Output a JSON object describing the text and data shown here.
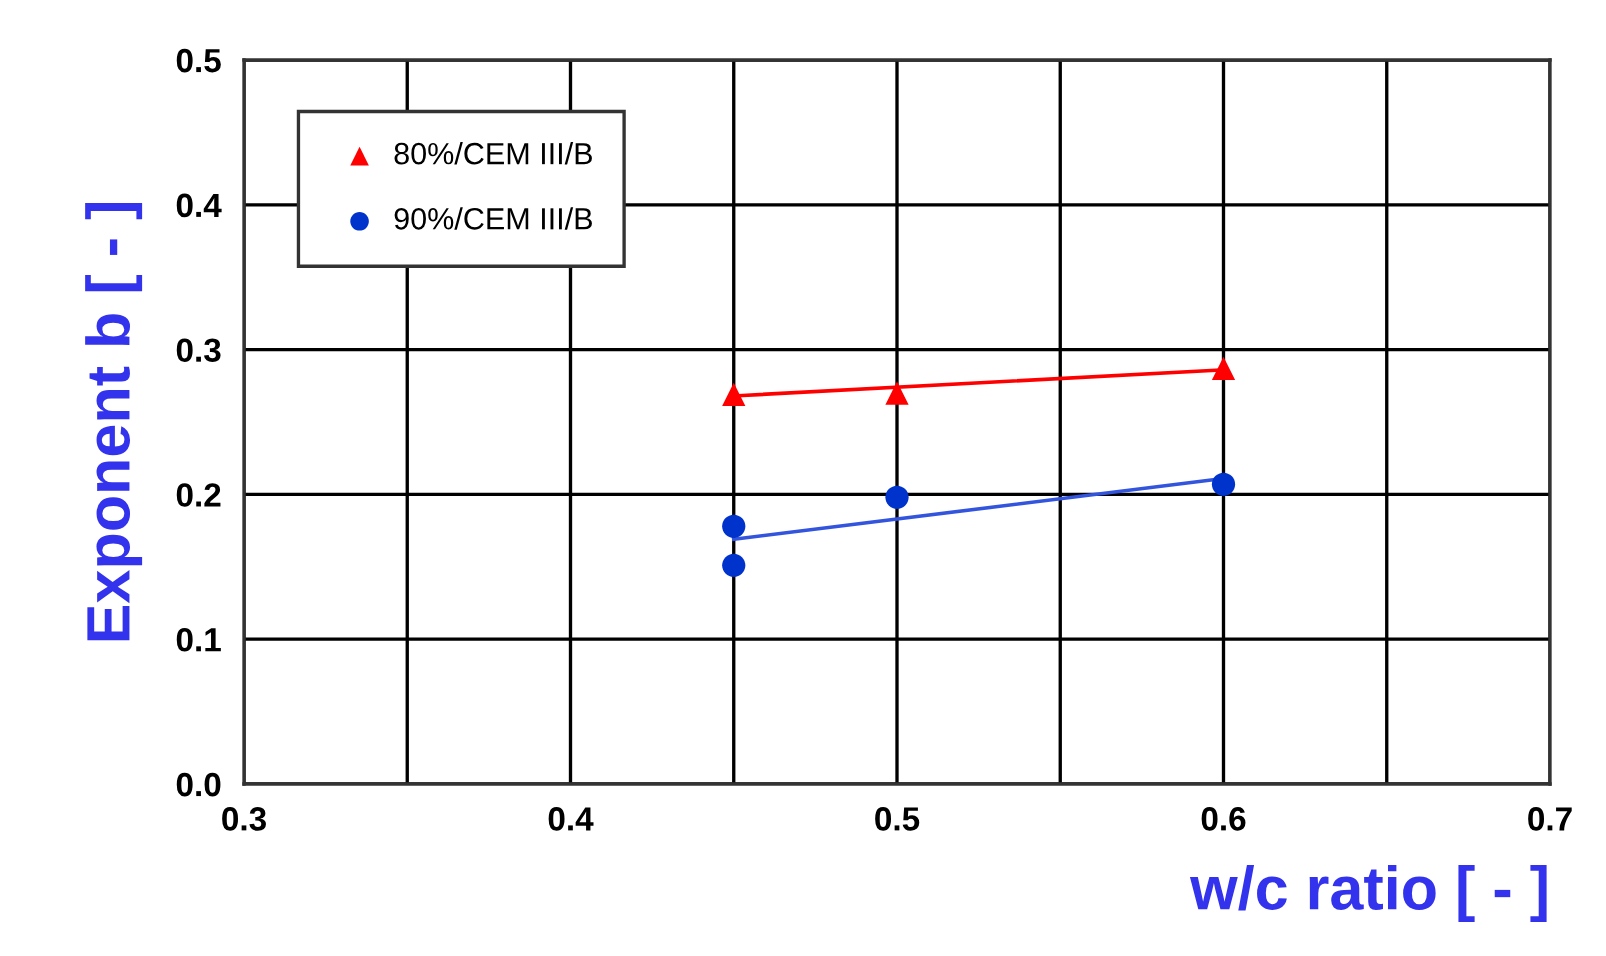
{
  "chart_data": {
    "type": "scatter",
    "xlabel": "w/c ratio [ - ]",
    "ylabel": "Exponent b [ - ]",
    "xlim": [
      0.3,
      0.7
    ],
    "ylim": [
      0.0,
      0.5
    ],
    "xticks": [
      {
        "value": 0.3,
        "label": "0.3"
      },
      {
        "value": 0.35,
        "label": null
      },
      {
        "value": 0.4,
        "label": "0.4"
      },
      {
        "value": 0.45,
        "label": null
      },
      {
        "value": 0.5,
        "label": "0.5"
      },
      {
        "value": 0.55,
        "label": null
      },
      {
        "value": 0.6,
        "label": "0.6"
      },
      {
        "value": 0.65,
        "label": null
      },
      {
        "value": 0.7,
        "label": "0.7"
      }
    ],
    "yticks": [
      {
        "value": 0.0,
        "label": "0.0"
      },
      {
        "value": 0.1,
        "label": "0.1"
      },
      {
        "value": 0.2,
        "label": "0.2"
      },
      {
        "value": 0.3,
        "label": "0.3"
      },
      {
        "value": 0.4,
        "label": "0.4"
      },
      {
        "value": 0.5,
        "label": "0.5"
      }
    ],
    "grid": true,
    "legend": "top left",
    "series": [
      {
        "name": "80%/CEM III/B",
        "marker": "triangle",
        "color": "#ff0000",
        "x": [
          0.45,
          0.5,
          0.6
        ],
        "values": [
          0.269,
          0.27,
          0.287
        ]
      },
      {
        "name": "90%/CEM III/B",
        "marker": "circle",
        "color": "#0033cc",
        "x": [
          0.45,
          0.45,
          0.5,
          0.6
        ],
        "values": [
          0.178,
          0.151,
          0.198,
          0.207
        ]
      },
      {
        "type": "line",
        "marker": "none",
        "color": "#ff0000",
        "x": [
          0.45,
          0.6
        ],
        "values": [
          0.268,
          0.286
        ]
      },
      {
        "type": "line",
        "marker": "none",
        "color": "#3355dd",
        "x": [
          0.45,
          0.6
        ],
        "values": [
          0.169,
          0.211
        ]
      }
    ]
  }
}
